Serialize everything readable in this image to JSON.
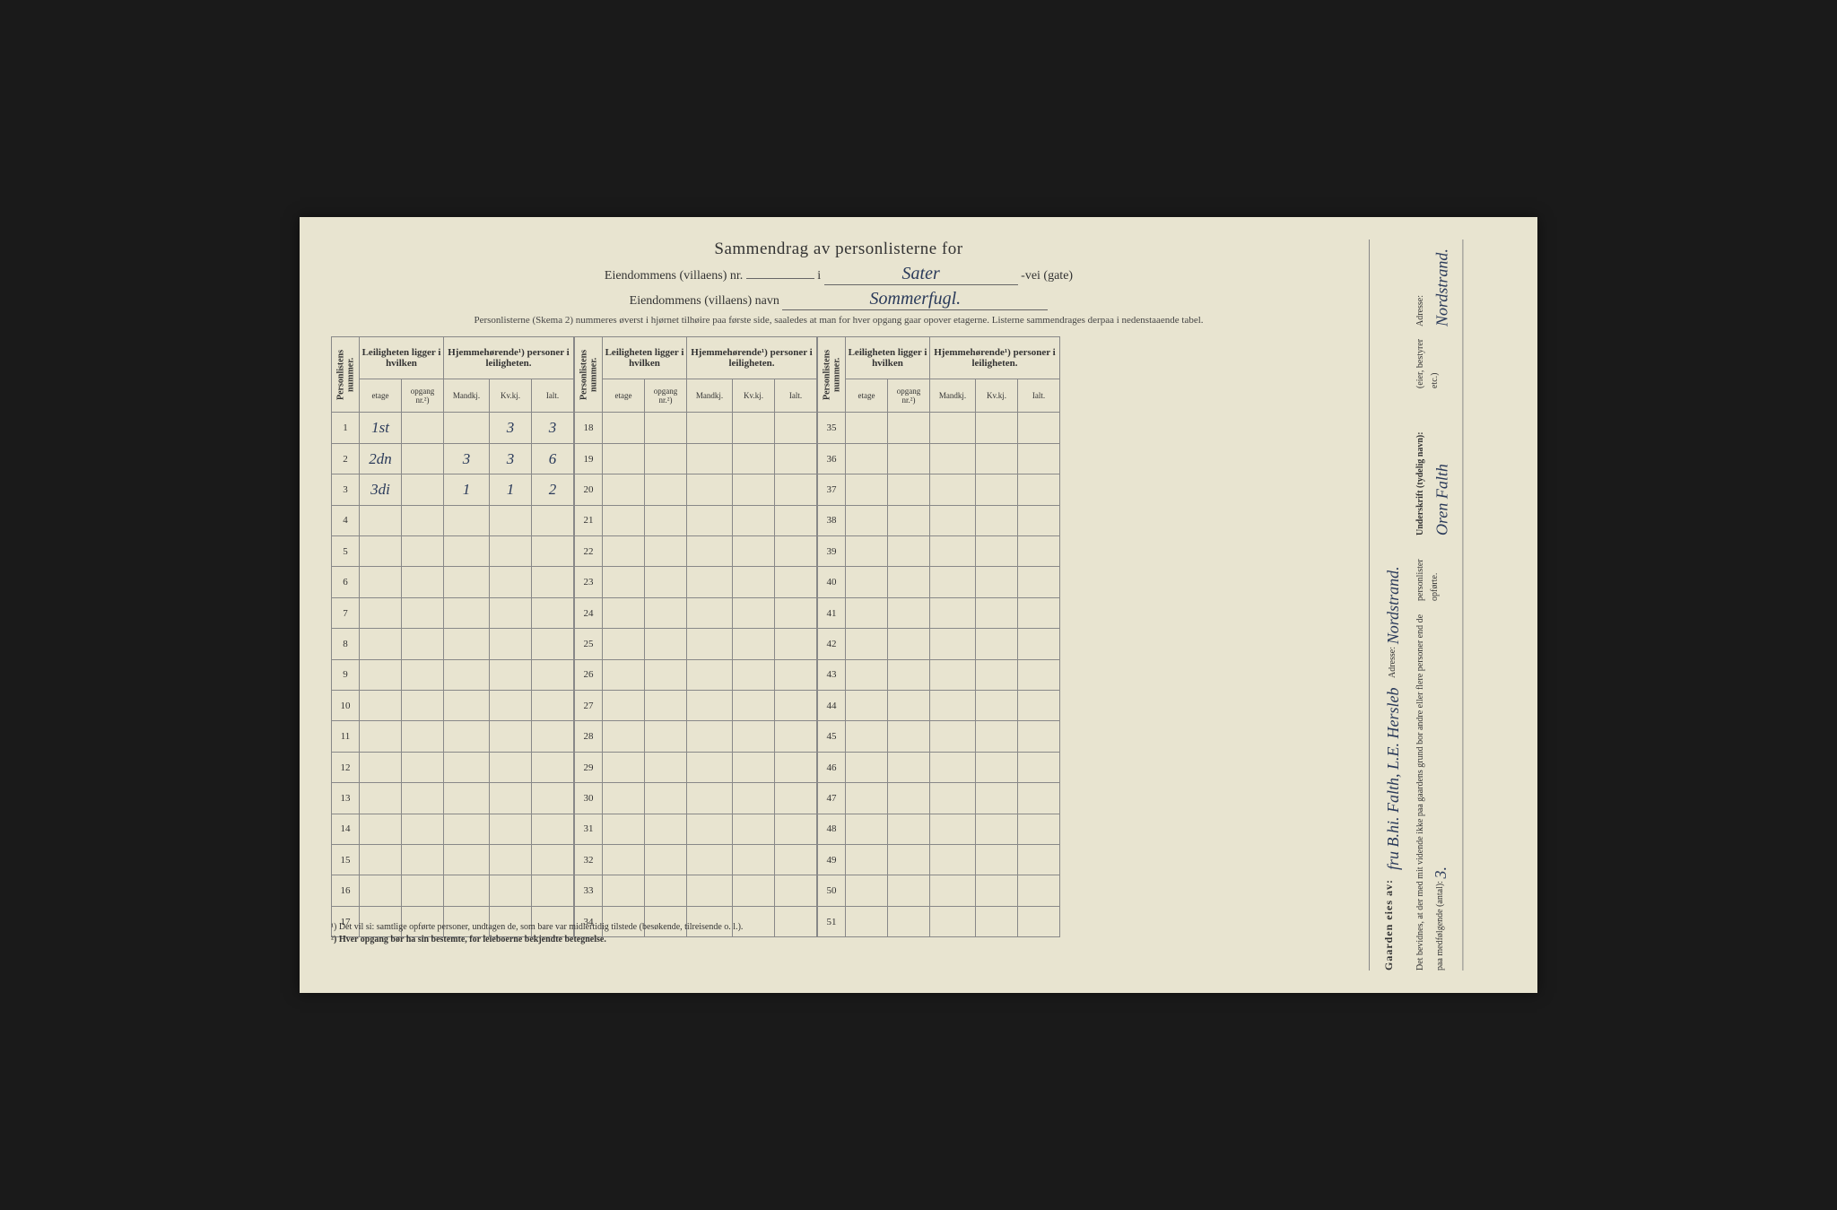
{
  "header": {
    "title": "Sammendrag av personlisterne for",
    "line2_label": "Eiendommens (villaens) nr.",
    "line2_middle": "i",
    "line2_handwritten": "Sater",
    "line2_suffix": "-vei (gate)",
    "line3_label": "Eiendommens (villaens) navn",
    "line3_handwritten": "Sommerfugl.",
    "instructions": "Personlisterne (Skema 2) nummeres øverst i hjørnet tilhøire paa første side, saaledes at man for hver opgang gaar opover etagerne. Listerne sammendrages derpaa i nedenstaaende tabel."
  },
  "table": {
    "col_personlistens": "Personlistens nummer.",
    "group_leiligheten": "Leiligheten ligger i hvilken",
    "group_hjemme": "Hjemmehørende¹) personer i leiligheten.",
    "sub_etage": "etage",
    "sub_opgang": "opgang nr.²)",
    "sub_mandkj": "Mandkj.",
    "sub_kvkj": "Kv.kj.",
    "sub_ialt": "Ialt.",
    "rows1": [
      {
        "n": "1",
        "etage": "1st",
        "opgang": "",
        "mandkj": "",
        "kvkj": "3",
        "ialt": "3"
      },
      {
        "n": "2",
        "etage": "2dn",
        "opgang": "",
        "mandkj": "3",
        "kvkj": "3",
        "ialt": "6"
      },
      {
        "n": "3",
        "etage": "3di",
        "opgang": "",
        "mandkj": "1",
        "kvkj": "1",
        "ialt": "2"
      },
      {
        "n": "4"
      },
      {
        "n": "5"
      },
      {
        "n": "6"
      },
      {
        "n": "7"
      },
      {
        "n": "8"
      },
      {
        "n": "9"
      },
      {
        "n": "10"
      },
      {
        "n": "11"
      },
      {
        "n": "12"
      },
      {
        "n": "13"
      },
      {
        "n": "14"
      },
      {
        "n": "15"
      },
      {
        "n": "16"
      },
      {
        "n": "17"
      }
    ],
    "rows2": [
      {
        "n": "18"
      },
      {
        "n": "19"
      },
      {
        "n": "20"
      },
      {
        "n": "21"
      },
      {
        "n": "22"
      },
      {
        "n": "23"
      },
      {
        "n": "24"
      },
      {
        "n": "25"
      },
      {
        "n": "26"
      },
      {
        "n": "27"
      },
      {
        "n": "28"
      },
      {
        "n": "29"
      },
      {
        "n": "30"
      },
      {
        "n": "31"
      },
      {
        "n": "32"
      },
      {
        "n": "33"
      },
      {
        "n": "34"
      }
    ],
    "rows3": [
      {
        "n": "35"
      },
      {
        "n": "36"
      },
      {
        "n": "37"
      },
      {
        "n": "38"
      },
      {
        "n": "39"
      },
      {
        "n": "40"
      },
      {
        "n": "41"
      },
      {
        "n": "42"
      },
      {
        "n": "43"
      },
      {
        "n": "44"
      },
      {
        "n": "45"
      },
      {
        "n": "46"
      },
      {
        "n": "47"
      },
      {
        "n": "48"
      },
      {
        "n": "49"
      },
      {
        "n": "50"
      },
      {
        "n": "51"
      }
    ]
  },
  "footnotes": {
    "f1": "¹) Det vil si: samtlige opførte personer, undtagen de, som bare var midlertidig tilstede (besøkende, tilreisende o. l.).",
    "f2": "²) Hver opgang bør ha sin bestemte, for leieboerne bekjendte betegnelse."
  },
  "right": {
    "gaarden_label": "Gaarden eies av:",
    "gaarden_value": "fru B.hi. Falth, L.E. Hersleb",
    "adresse_label": "Adresse:",
    "adresse_value": "Nordstrand.",
    "bevidnes": "Det bevidnes, at der med mit vidende ikke paa gaardens grund bor andre eller flere personer end de paa medfølgende (antal):",
    "bevidnes_count": "3.",
    "personlister": "personlister opførte.",
    "underskrift_label": "Underskrift (tydelig navn):",
    "underskrift_value": "Oren Falth",
    "eier_note": "(eier, bestyrer etc.)",
    "adresse2_label": "Adresse:",
    "adresse2_value": "Nordstrand."
  }
}
